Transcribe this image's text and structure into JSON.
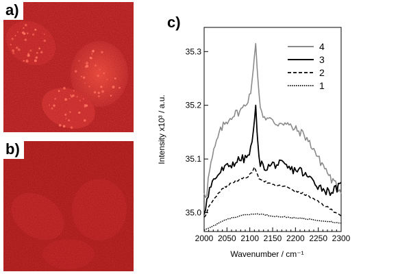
{
  "panels": {
    "a": {
      "label": "a)"
    },
    "b": {
      "label": "b)"
    },
    "c": {
      "label": "c)"
    }
  },
  "colors": {
    "micrograph_bright": "#b71212",
    "micrograph_dim": "#a30f0f",
    "series_4": "#8a8a8a",
    "series_3": "#000000",
    "series_2": "#000000",
    "series_1": "#000000"
  },
  "chart_data": {
    "type": "line",
    "title": "",
    "xlabel": "Wavenumber / cm⁻¹",
    "ylabel": "Intensity  x10³ / a.u.",
    "xlim": [
      2000,
      2300
    ],
    "ylim": [
      34.965,
      35.345
    ],
    "xticks": [
      "2000",
      "2050",
      "2100",
      "2150",
      "2200",
      "2250",
      "2300"
    ],
    "yticks": [
      "35.0",
      "35.1",
      "35.2",
      "35.3"
    ],
    "legend_position": "top-right",
    "series": [
      {
        "name": "4",
        "style": "solid-gray",
        "x": [
          2000,
          2005,
          2010,
          2020,
          2030,
          2040,
          2050,
          2060,
          2070,
          2080,
          2090,
          2100,
          2105,
          2110,
          2113,
          2116,
          2120,
          2125,
          2130,
          2140,
          2150,
          2160,
          2170,
          2180,
          2190,
          2200,
          2210,
          2220,
          2230,
          2240,
          2250,
          2260,
          2270,
          2280,
          2290,
          2300
        ],
        "values": [
          35.04,
          35.03,
          35.07,
          35.11,
          35.14,
          35.16,
          35.17,
          35.18,
          35.185,
          35.19,
          35.2,
          35.22,
          35.24,
          35.29,
          35.315,
          35.27,
          35.22,
          35.19,
          35.18,
          35.175,
          35.17,
          35.165,
          35.17,
          35.165,
          35.16,
          35.155,
          35.15,
          35.145,
          35.13,
          35.12,
          35.1,
          35.09,
          35.075,
          35.06,
          35.05,
          35.04
        ]
      },
      {
        "name": "3",
        "style": "solid-black",
        "x": [
          2000,
          2005,
          2010,
          2020,
          2030,
          2040,
          2050,
          2060,
          2070,
          2080,
          2090,
          2100,
          2105,
          2110,
          2113,
          2116,
          2120,
          2125,
          2130,
          2140,
          2150,
          2160,
          2170,
          2180,
          2190,
          2200,
          2210,
          2220,
          2230,
          2240,
          2250,
          2260,
          2270,
          2280,
          2290,
          2300
        ],
        "values": [
          35.0,
          35.02,
          35.04,
          35.06,
          35.07,
          35.08,
          35.085,
          35.09,
          35.095,
          35.1,
          35.1,
          35.11,
          35.13,
          35.17,
          35.2,
          35.15,
          35.1,
          35.09,
          35.085,
          35.085,
          35.09,
          35.09,
          35.09,
          35.085,
          35.08,
          35.08,
          35.08,
          35.07,
          35.065,
          35.06,
          35.05,
          35.045,
          35.04,
          35.04,
          35.045,
          35.05
        ]
      },
      {
        "name": "2",
        "style": "dashed",
        "x": [
          2000,
          2010,
          2020,
          2030,
          2040,
          2050,
          2060,
          2070,
          2080,
          2090,
          2100,
          2105,
          2110,
          2115,
          2120,
          2130,
          2140,
          2150,
          2160,
          2170,
          2180,
          2190,
          2200,
          2210,
          2220,
          2230,
          2240,
          2250,
          2260,
          2270,
          2280,
          2290,
          2300
        ],
        "values": [
          34.99,
          35.01,
          35.025,
          35.035,
          35.045,
          35.05,
          35.055,
          35.06,
          35.062,
          35.065,
          35.07,
          35.075,
          35.085,
          35.075,
          35.065,
          35.06,
          35.055,
          35.052,
          35.05,
          35.05,
          35.048,
          35.045,
          35.04,
          35.037,
          35.035,
          35.03,
          35.025,
          35.02,
          35.015,
          35.01,
          35.005,
          35.0,
          34.995
        ]
      },
      {
        "name": "1",
        "style": "dotted",
        "x": [
          2000,
          2020,
          2040,
          2060,
          2080,
          2100,
          2120,
          2140,
          2160,
          2180,
          2200,
          2220,
          2240,
          2260,
          2280,
          2300
        ],
        "values": [
          34.967,
          34.975,
          34.985,
          34.99,
          34.995,
          34.997,
          34.998,
          34.995,
          34.993,
          34.992,
          34.99,
          34.989,
          34.987,
          34.985,
          34.983,
          34.98
        ]
      }
    ]
  }
}
